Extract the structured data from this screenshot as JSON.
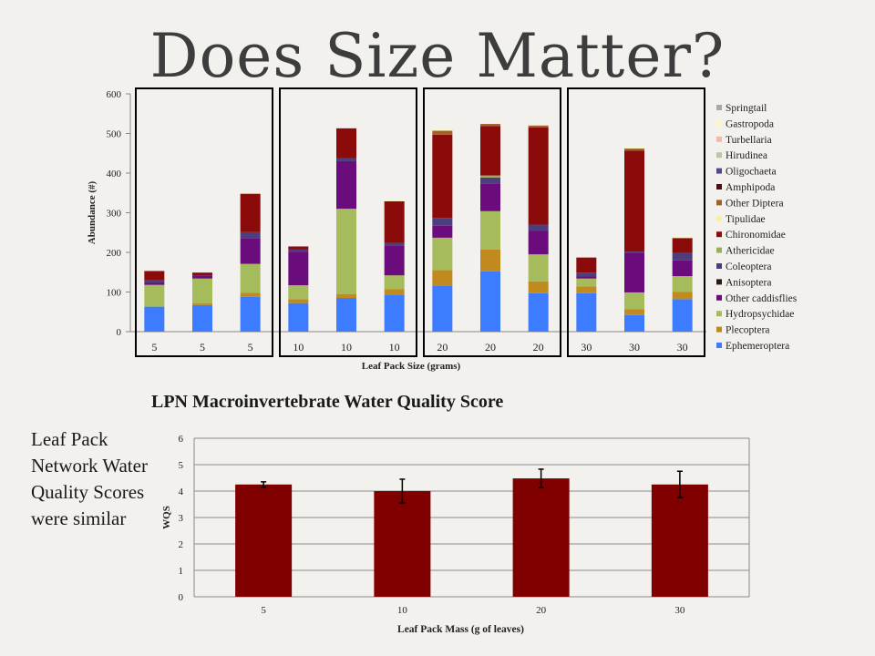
{
  "slide": {
    "title": "Does Size Matter?",
    "side_text": "Leaf Pack Network Water Quality Scores were similar"
  },
  "chart_data": [
    {
      "type": "bar",
      "stacked": true,
      "categories": [
        "5",
        "5",
        "5",
        "10",
        "10",
        "10",
        "20",
        "20",
        "20",
        "30",
        "30",
        "30"
      ],
      "xlabel": "Leaf Pack Size (grams)",
      "ylabel": "Abundance (#)",
      "ylim": [
        0,
        600
      ],
      "yticks": [
        0,
        100,
        200,
        300,
        400,
        500,
        600
      ],
      "legend_position": "right",
      "group_boxes": [
        [
          0,
          2
        ],
        [
          3,
          5
        ],
        [
          6,
          8
        ],
        [
          9,
          11
        ]
      ],
      "series": [
        {
          "name": "Ephemeroptera",
          "color": "#3d7cff",
          "values": [
            63,
            67,
            88,
            72,
            85,
            92,
            115,
            152,
            97,
            97,
            42,
            82
          ]
        },
        {
          "name": "Plecoptera",
          "color": "#c08a1e",
          "values": [
            0,
            5,
            10,
            10,
            10,
            15,
            40,
            55,
            30,
            17,
            15,
            18
          ]
        },
        {
          "name": "Hydropsychidae",
          "color": "#a6bb5c",
          "values": [
            55,
            62,
            73,
            35,
            215,
            35,
            82,
            97,
            68,
            20,
            42,
            40
          ]
        },
        {
          "name": "Other caddisflies",
          "color": "#6b0c7c",
          "values": [
            5,
            8,
            65,
            85,
            120,
            75,
            30,
            70,
            60,
            5,
            100,
            40
          ]
        },
        {
          "name": "Anisoptera",
          "color": "#2c1a1a",
          "values": [
            0,
            0,
            0,
            0,
            0,
            0,
            0,
            0,
            0,
            0,
            0,
            0
          ]
        },
        {
          "name": "Coleoptera",
          "color": "#4d3d7c",
          "values": [
            8,
            0,
            15,
            5,
            8,
            7,
            20,
            15,
            15,
            10,
            3,
            20
          ]
        },
        {
          "name": "Athericidae",
          "color": "#98ae5b",
          "values": [
            0,
            0,
            0,
            0,
            0,
            0,
            0,
            5,
            0,
            0,
            0,
            0
          ]
        },
        {
          "name": "Chironomidae",
          "color": "#8b0a0a",
          "values": [
            22,
            7,
            97,
            8,
            75,
            105,
            210,
            125,
            245,
            38,
            255,
            35
          ]
        },
        {
          "name": "Tipulidae",
          "color": "#f8f0a0",
          "values": [
            0,
            0,
            0,
            0,
            0,
            0,
            0,
            0,
            0,
            0,
            0,
            0
          ]
        },
        {
          "name": "Other Diptera",
          "color": "#a0622c",
          "values": [
            0,
            0,
            0,
            0,
            0,
            0,
            10,
            5,
            5,
            0,
            5,
            2
          ]
        },
        {
          "name": "Amphipoda",
          "color": "#4a0f14",
          "values": [
            0,
            0,
            0,
            0,
            0,
            0,
            0,
            0,
            0,
            0,
            0,
            0
          ]
        },
        {
          "name": "Oligochaeta",
          "color": "#54488c",
          "values": [
            0,
            0,
            0,
            0,
            0,
            0,
            0,
            0,
            0,
            0,
            0,
            0
          ]
        },
        {
          "name": "Hirudinea",
          "color": "#b9c7a0",
          "values": [
            0,
            0,
            0,
            0,
            0,
            0,
            0,
            0,
            0,
            0,
            0,
            0
          ]
        },
        {
          "name": "Turbellaria",
          "color": "#f2b9a8",
          "values": [
            0,
            0,
            0,
            0,
            0,
            0,
            0,
            0,
            0,
            0,
            0,
            0
          ]
        },
        {
          "name": "Gastropoda",
          "color": "#fdf6c0",
          "values": [
            0,
            0,
            2,
            0,
            0,
            3,
            5,
            0,
            0,
            0,
            5,
            3
          ]
        },
        {
          "name": "Springtail",
          "color": "#a8a8a8",
          "values": [
            0,
            0,
            0,
            0,
            0,
            0,
            0,
            0,
            0,
            0,
            0,
            0
          ]
        }
      ]
    },
    {
      "type": "bar",
      "title": "LPN Macroinvertebrate  Water Quality Score",
      "categories": [
        "5",
        "10",
        "20",
        "30"
      ],
      "values": [
        4.25,
        4.0,
        4.48,
        4.25
      ],
      "error": [
        0.1,
        0.45,
        0.35,
        0.5
      ],
      "xlabel": "Leaf Pack Mass (g of leaves)",
      "ylabel": "WQS",
      "ylim": [
        0,
        6
      ],
      "yticks": [
        0,
        1,
        2,
        3,
        4,
        5,
        6
      ],
      "bar_color": "#800000",
      "grid": true
    }
  ]
}
